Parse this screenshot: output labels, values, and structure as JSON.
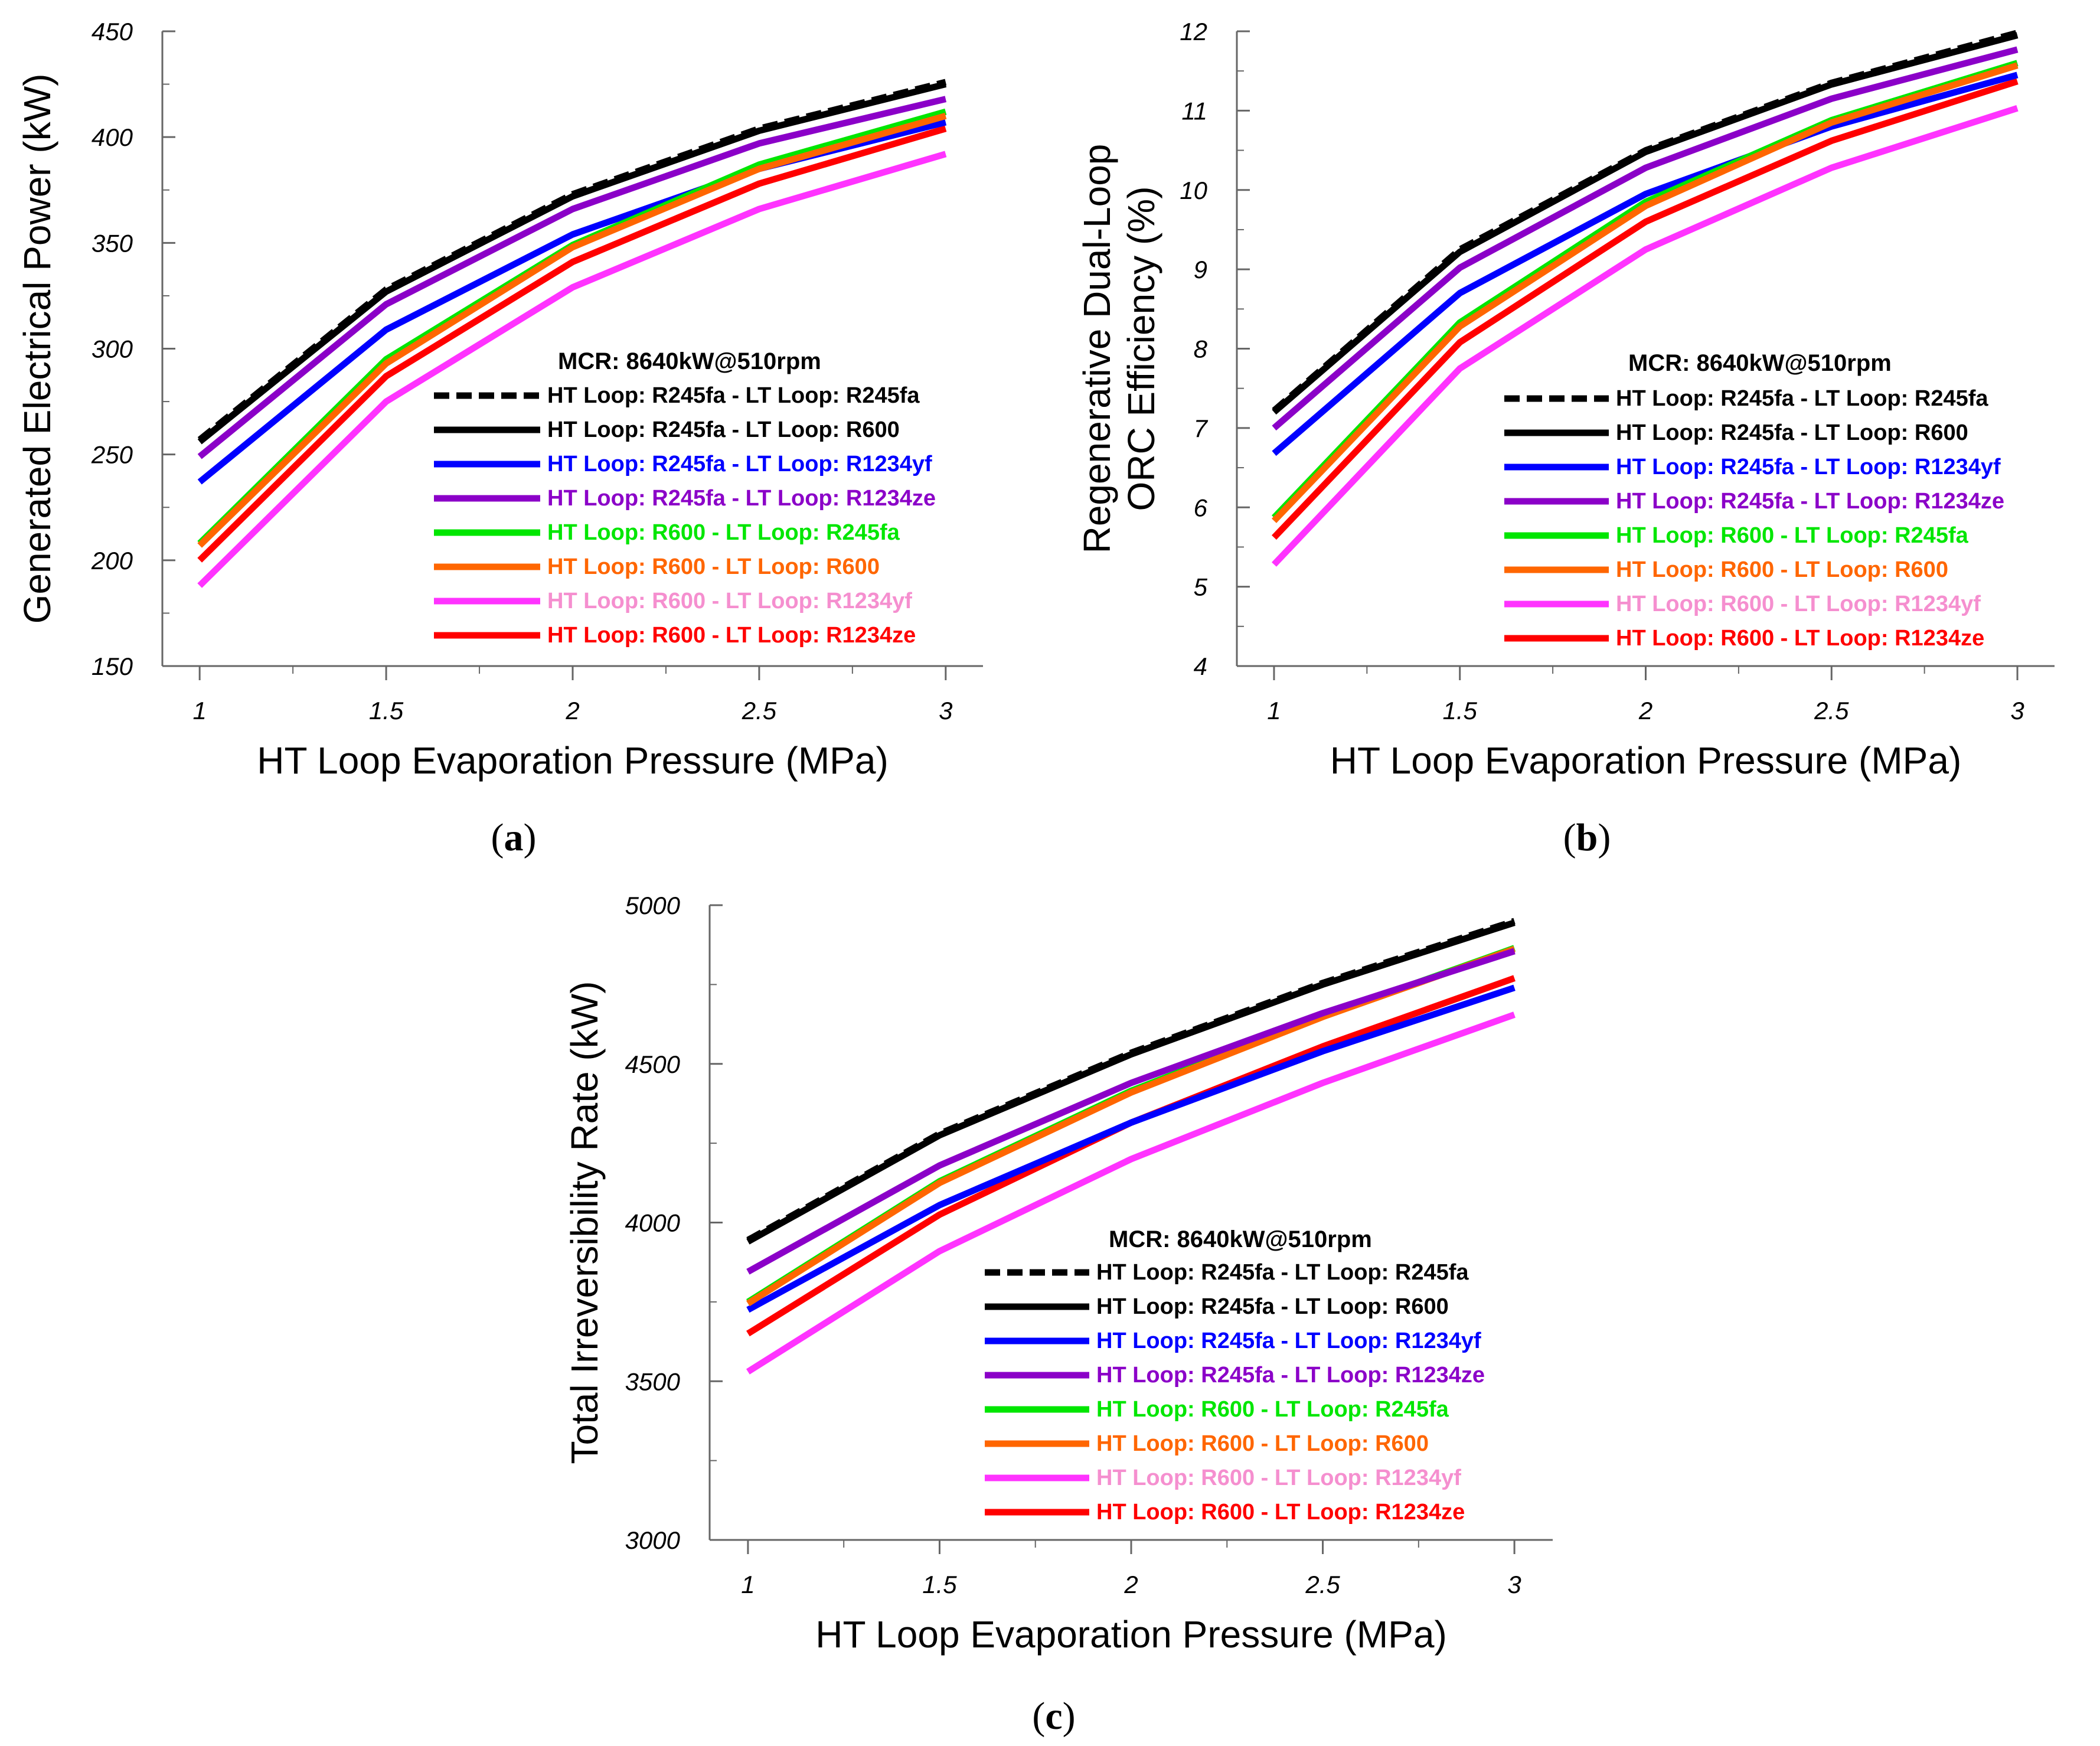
{
  "series_styles": [
    {
      "key": "s1",
      "color": "#000000",
      "dashed": true
    },
    {
      "key": "s2",
      "color": "#000000",
      "dashed": false
    },
    {
      "key": "s3",
      "color": "#0000ff",
      "dashed": false
    },
    {
      "key": "s4",
      "color": "#8b00c8",
      "dashed": false
    },
    {
      "key": "s5",
      "color": "#00e600",
      "dashed": false
    },
    {
      "key": "s6",
      "color": "#ff6600",
      "dashed": false
    },
    {
      "key": "s7",
      "color": "#ff33ff",
      "dashed": false,
      "legend_text_color": "#f58fcf"
    },
    {
      "key": "s8",
      "color": "#ff0000",
      "dashed": false
    }
  ],
  "chart_data": [
    {
      "panel": "a",
      "panel_label": "a",
      "type": "line",
      "xlabel": "HT Loop Evaporation Pressure (MPa)",
      "ylabel": "Generated Electrical Power (kW)",
      "x": [
        1,
        1.5,
        2,
        2.5,
        3
      ],
      "xticks": [
        "1",
        "1.5",
        "2",
        "2.5",
        "3"
      ],
      "xlim": [
        0.9,
        3.1
      ],
      "ylim": [
        150,
        450
      ],
      "yticks": [
        "150",
        "200",
        "250",
        "300",
        "350",
        "400",
        "450"
      ],
      "legend_title": "MCR: 8640kW@510rpm",
      "series": [
        {
          "name": "HT Loop: R245fa - LT Loop: R245fa",
          "values": [
            257,
            328,
            373,
            404,
            426
          ]
        },
        {
          "name": "HT Loop: R245fa - LT Loop: R600",
          "values": [
            256,
            327,
            372,
            403,
            425
          ]
        },
        {
          "name": "HT Loop: R245fa - LT Loop: R1234yf",
          "values": [
            237,
            309,
            354,
            385,
            407
          ]
        },
        {
          "name": "HT Loop: R245fa - LT Loop: R1234ze",
          "values": [
            249,
            321,
            366,
            397,
            418
          ]
        },
        {
          "name": "HT Loop: R600 - LT Loop: R245fa",
          "values": [
            208,
            295,
            349,
            387,
            412
          ]
        },
        {
          "name": "HT Loop: R600 - LT Loop: R600",
          "values": [
            207,
            293,
            348,
            385,
            410
          ]
        },
        {
          "name": "HT Loop: R600 - LT Loop: R1234yf",
          "values": [
            188,
            275,
            329,
            366,
            392
          ]
        },
        {
          "name": "HT Loop: R600 - LT Loop: R1234ze",
          "values": [
            200,
            287,
            341,
            378,
            404
          ]
        }
      ]
    },
    {
      "panel": "b",
      "panel_label": "b",
      "type": "line",
      "xlabel": "HT Loop Evaporation Pressure (MPa)",
      "ylabel_line1": "Regenerative Dual-Loop",
      "ylabel_line2": "ORC Efficiency (%)",
      "x": [
        1,
        1.5,
        2,
        2.5,
        3
      ],
      "xticks": [
        "1",
        "1.5",
        "2",
        "2.5",
        "3"
      ],
      "xlim": [
        0.9,
        3.1
      ],
      "ylim": [
        4,
        12
      ],
      "yticks": [
        "4",
        "5",
        "6",
        "7",
        "8",
        "9",
        "10",
        "11",
        "12"
      ],
      "legend_title": "MCR: 8640kW@510rpm",
      "series": [
        {
          "name": "HT Loop: R245fa - LT Loop: R245fa",
          "values": [
            7.22,
            9.25,
            10.5,
            11.35,
            11.98
          ]
        },
        {
          "name": "HT Loop: R245fa - LT Loop: R600",
          "values": [
            7.2,
            9.22,
            10.48,
            11.33,
            11.95
          ]
        },
        {
          "name": "HT Loop: R245fa - LT Loop: R1234yf",
          "values": [
            6.68,
            8.7,
            9.95,
            10.8,
            11.45
          ]
        },
        {
          "name": "HT Loop: R245fa - LT Loop: R1234ze",
          "values": [
            7.0,
            9.02,
            10.28,
            11.15,
            11.77
          ]
        },
        {
          "name": "HT Loop: R600 - LT Loop: R245fa",
          "values": [
            5.87,
            8.33,
            9.85,
            10.88,
            11.6
          ]
        },
        {
          "name": "HT Loop: R600 - LT Loop: R600",
          "values": [
            5.83,
            8.28,
            9.8,
            10.85,
            11.57
          ]
        },
        {
          "name": "HT Loop: R600 - LT Loop: R1234yf",
          "values": [
            5.28,
            7.75,
            9.25,
            10.28,
            11.03
          ]
        },
        {
          "name": "HT Loop: R600 - LT Loop: R1234ze",
          "values": [
            5.62,
            8.08,
            9.6,
            10.62,
            11.37
          ]
        }
      ]
    },
    {
      "panel": "c",
      "panel_label": "c",
      "type": "line",
      "xlabel": "HT Loop Evaporation Pressure (MPa)",
      "ylabel": "Total Irreversibility Rate (kW)",
      "x": [
        1,
        1.5,
        2,
        2.5,
        3
      ],
      "xticks": [
        "1",
        "1.5",
        "2",
        "2.5",
        "3"
      ],
      "xlim": [
        0.9,
        3.1
      ],
      "ylim": [
        3000,
        5000
      ],
      "yticks": [
        "3000",
        "3500",
        "4000",
        "4500",
        "5000"
      ],
      "legend_title": "MCR: 8640kW@510rpm",
      "series": [
        {
          "name": "HT Loop: R245fa - LT Loop: R245fa",
          "values": [
            3945,
            4280,
            4535,
            4755,
            4950
          ]
        },
        {
          "name": "HT Loop: R245fa - LT Loop: R600",
          "values": [
            3940,
            4275,
            4530,
            4750,
            4945
          ]
        },
        {
          "name": "HT Loop: R245fa - LT Loop: R1234yf",
          "values": [
            3725,
            4055,
            4315,
            4540,
            4740
          ]
        },
        {
          "name": "HT Loop: R245fa - LT Loop: R1234ze",
          "values": [
            3845,
            4180,
            4440,
            4660,
            4855
          ]
        },
        {
          "name": "HT Loop: R600 - LT Loop: R245fa",
          "values": [
            3750,
            4130,
            4415,
            4650,
            4865
          ]
        },
        {
          "name": "HT Loop: R600 - LT Loop: R600",
          "values": [
            3745,
            4125,
            4410,
            4648,
            4862
          ]
        },
        {
          "name": "HT Loop: R600 - LT Loop: R1234yf",
          "values": [
            3530,
            3910,
            4200,
            4440,
            4655
          ]
        },
        {
          "name": "HT Loop: R600 - LT Loop: R1234ze",
          "values": [
            3650,
            4025,
            4315,
            4555,
            4770
          ]
        }
      ]
    }
  ]
}
